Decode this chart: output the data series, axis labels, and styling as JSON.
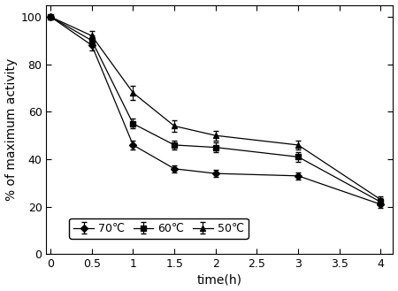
{
  "x": [
    0,
    0.5,
    1,
    1.5,
    2,
    3,
    4
  ],
  "y_70": [
    100,
    88,
    46,
    36,
    34,
    33,
    21
  ],
  "y_60": [
    100,
    90,
    55,
    46,
    45,
    41,
    22
  ],
  "y_50": [
    100,
    92,
    68,
    54,
    50,
    46,
    23
  ],
  "yerr_70": [
    0,
    2,
    2,
    1.5,
    1.5,
    1.5,
    1.5
  ],
  "yerr_60": [
    0,
    2,
    2,
    2,
    2,
    2,
    1.5
  ],
  "yerr_50": [
    0,
    2,
    3,
    2.5,
    2,
    2,
    1.5
  ],
  "xlabel": "time(h)",
  "ylabel": "% of maximum activity",
  "xlim": [
    -0.05,
    4.15
  ],
  "ylim": [
    0,
    105
  ],
  "xticks": [
    0,
    0.5,
    1,
    1.5,
    2,
    2.5,
    3,
    3.5,
    4
  ],
  "xticklabels": [
    "0",
    "0.5",
    "1",
    "1.5",
    "2",
    "2.5",
    "3",
    "3.5",
    "4"
  ],
  "yticks": [
    0,
    20,
    40,
    60,
    80,
    100
  ],
  "legend_labels": [
    "70℃",
    "60℃",
    "50℃"
  ],
  "line_color": "#000000",
  "background_color": "#ffffff",
  "xlabel_fontsize": 10,
  "ylabel_fontsize": 10,
  "tick_labelsize": 9,
  "legend_fontsize": 9
}
